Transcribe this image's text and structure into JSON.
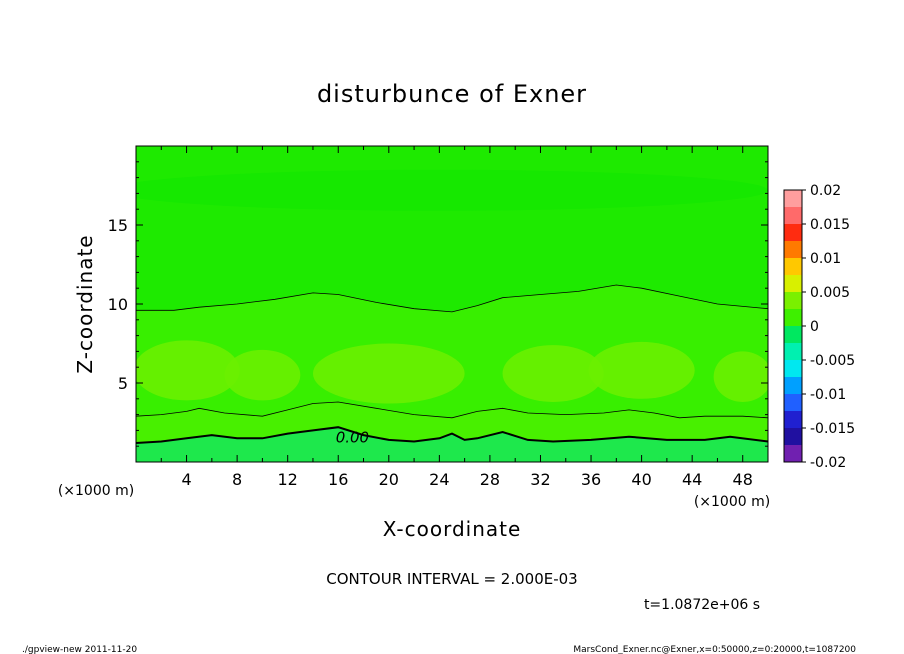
{
  "chart_data": {
    "type": "heatmap",
    "title": "disturbunce of Exner",
    "xlabel": "X-coordinate",
    "ylabel": "Z-coordinate",
    "x_unit": "(×1000 m)",
    "y_unit": "(×1000 m)",
    "xlim": [
      0,
      50
    ],
    "ylim": [
      0,
      20
    ],
    "x_ticks": [
      4,
      8,
      12,
      16,
      20,
      24,
      28,
      32,
      36,
      40,
      44,
      48
    ],
    "y_ticks": [
      5,
      10,
      15
    ],
    "colorbar": {
      "min": -0.02,
      "max": 0.02,
      "tick_labels": [
        "0.02",
        "0.015",
        "0.01",
        "0.005",
        "0",
        "-0.005",
        "-0.01",
        "-0.015",
        "-0.02"
      ],
      "tick_values": [
        0.02,
        0.015,
        0.01,
        0.005,
        0,
        -0.005,
        -0.01,
        -0.015,
        -0.02
      ],
      "colors": [
        "#ff9e9e",
        "#ff6a6a",
        "#ff2c10",
        "#ff7a00",
        "#ffc800",
        "#d8f000",
        "#7af000",
        "#3ef000",
        "#00e860",
        "#00f0b0",
        "#00e8f0",
        "#00a0ff",
        "#2060ff",
        "#2020d0",
        "#2010a0",
        "#7020b0"
      ]
    },
    "contour_interval": "CONTOUR INTERVAL = 2.000E-03",
    "contour_labels": [
      {
        "text": "0.00",
        "x": 15.8,
        "y": 1.6
      }
    ],
    "contours": [
      {
        "level": "0.00",
        "bold": true,
        "points": [
          [
            0,
            1.2
          ],
          [
            2,
            1.3
          ],
          [
            4,
            1.5
          ],
          [
            6,
            1.7
          ],
          [
            8,
            1.5
          ],
          [
            10,
            1.5
          ],
          [
            12,
            1.8
          ],
          [
            14,
            2.0
          ],
          [
            16,
            2.2
          ],
          [
            18,
            1.7
          ],
          [
            20,
            1.4
          ],
          [
            22,
            1.3
          ],
          [
            24,
            1.5
          ],
          [
            25,
            1.8
          ],
          [
            26,
            1.4
          ],
          [
            27,
            1.5
          ],
          [
            29,
            1.9
          ],
          [
            31,
            1.4
          ],
          [
            33,
            1.3
          ],
          [
            36,
            1.4
          ],
          [
            39,
            1.6
          ],
          [
            42,
            1.4
          ],
          [
            45,
            1.4
          ],
          [
            47,
            1.6
          ],
          [
            50,
            1.3
          ]
        ]
      },
      {
        "level": "0.002",
        "bold": false,
        "points": [
          [
            0,
            2.9
          ],
          [
            2,
            3.0
          ],
          [
            4,
            3.2
          ],
          [
            5,
            3.4
          ],
          [
            7,
            3.1
          ],
          [
            10,
            2.9
          ],
          [
            12,
            3.3
          ],
          [
            14,
            3.7
          ],
          [
            16,
            3.8
          ],
          [
            19,
            3.4
          ],
          [
            22,
            3.0
          ],
          [
            25,
            2.8
          ],
          [
            27,
            3.2
          ],
          [
            29,
            3.4
          ],
          [
            31,
            3.1
          ],
          [
            34,
            3.0
          ],
          [
            37,
            3.1
          ],
          [
            39,
            3.3
          ],
          [
            41,
            3.1
          ],
          [
            43,
            2.8
          ],
          [
            45,
            2.9
          ],
          [
            48,
            2.9
          ],
          [
            50,
            2.8
          ]
        ]
      },
      {
        "level": "0.004",
        "bold": false,
        "points": [
          [
            0,
            9.6
          ],
          [
            3,
            9.6
          ],
          [
            5,
            9.8
          ],
          [
            8,
            10.0
          ],
          [
            11,
            10.3
          ],
          [
            14,
            10.7
          ],
          [
            16,
            10.6
          ],
          [
            19,
            10.1
          ],
          [
            22,
            9.7
          ],
          [
            25,
            9.5
          ],
          [
            27,
            9.9
          ],
          [
            29,
            10.4
          ],
          [
            32,
            10.6
          ],
          [
            35,
            10.8
          ],
          [
            38,
            11.2
          ],
          [
            40,
            11.0
          ],
          [
            43,
            10.5
          ],
          [
            46,
            10.0
          ],
          [
            50,
            9.7
          ]
        ]
      }
    ],
    "bands": [
      {
        "level": "0.002",
        "color": "#55f000"
      },
      {
        "level": "0.004",
        "color": "#48f000"
      },
      {
        "level": "0.006",
        "color": "#38ef00"
      },
      {
        "level": "0.008",
        "color": "#1eea00"
      }
    ],
    "blobs": [
      {
        "x": 4.0,
        "y": 5.8,
        "rx": 4.2,
        "ry": 1.9,
        "color": "#6af000"
      },
      {
        "x": 10.0,
        "y": 5.5,
        "rx": 3.0,
        "ry": 1.6,
        "color": "#6af000"
      },
      {
        "x": 20.0,
        "y": 5.6,
        "rx": 6.0,
        "ry": 1.9,
        "color": "#6af000"
      },
      {
        "x": 33.0,
        "y": 5.6,
        "rx": 4.0,
        "ry": 1.8,
        "color": "#6af000"
      },
      {
        "x": 40.0,
        "y": 5.8,
        "rx": 4.2,
        "ry": 1.8,
        "color": "#6af000"
      },
      {
        "x": 48.0,
        "y": 5.4,
        "rx": 2.3,
        "ry": 1.6,
        "color": "#6af000"
      },
      {
        "x": 24.0,
        "y": 17.2,
        "rx": 26.0,
        "ry": 1.3,
        "color": "#15e800"
      }
    ],
    "time": "t=1.0872e+06 s"
  },
  "footer": {
    "left": "./gpview-new  2011-11-20",
    "right": "MarsCond_Exner.nc@Exner,x=0:50000,z=0:20000,t=1087200"
  },
  "colors": {
    "background": "#ffffff",
    "plot_default": "#2cee00"
  }
}
